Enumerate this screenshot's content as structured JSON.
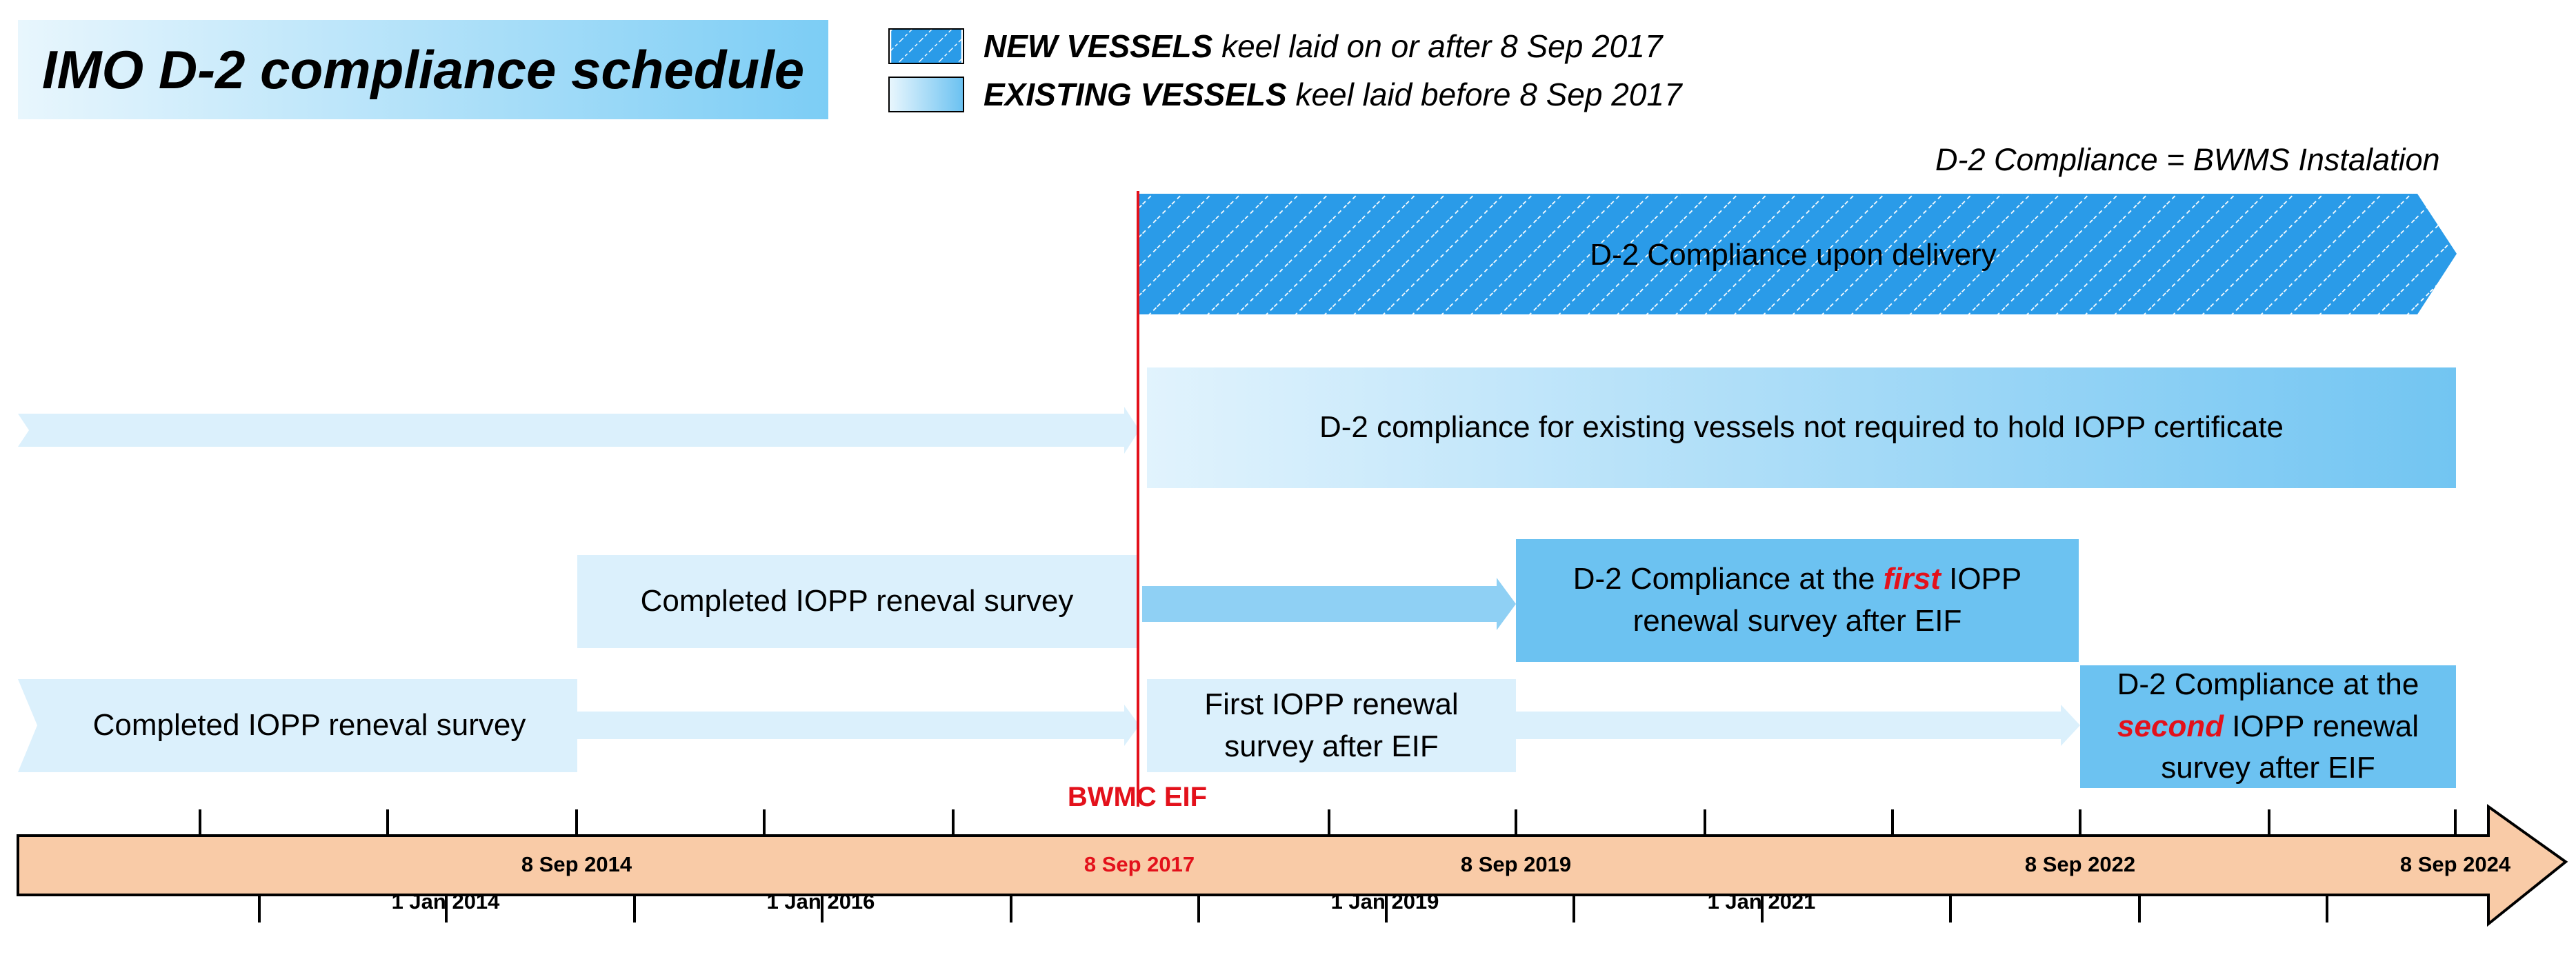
{
  "title": "IMO D-2 compliance schedule",
  "legend": {
    "new": {
      "bold": "NEW VESSELS",
      "rest": " keel laid on or after 8 Sep 2017"
    },
    "existing": {
      "bold": "EXISTING VESSELS",
      "rest": " keel laid before 8 Sep 2017"
    }
  },
  "note": "D-2 Compliance = BWMS Instalation",
  "bars": {
    "new_vessels": "D-2 Compliance upon delivery",
    "no_iopp": "D-2 compliance for  existing vessels not required to hold IOPP certificate",
    "row3_completed": "Completed IOPP reneval survey",
    "row3_result": {
      "pre": "D-2 Compliance at the ",
      "accent": "first",
      "post": " IOPP renewal survey after EIF"
    },
    "row4_completed": "Completed IOPP reneval survey",
    "row4_first": "First IOPP renewal survey after EIF",
    "row4_result": {
      "pre": "D-2 Compliance at the ",
      "accent": "second",
      "post": " IOPP renewal survey after EIF"
    }
  },
  "eif": {
    "label": "BWMC EIF"
  },
  "timeline": {
    "upper_labels": [
      "8 Sep 2014",
      "8 Sep 2017",
      "8 Sep 2019",
      "8 Sep 2022",
      "8 Sep 2024"
    ],
    "lower_labels": [
      "1 Jan 2014",
      "1 Jan 2016",
      "1 Jan 2019",
      "1 Jan 2021"
    ]
  },
  "colors": {
    "accent_red": "#e3111b",
    "bar_light": "#dbf0fc",
    "bar_mid": "#6cc2f1",
    "hatch_blue": "#2a9be8",
    "timeline_fill": "#f9cba7"
  }
}
